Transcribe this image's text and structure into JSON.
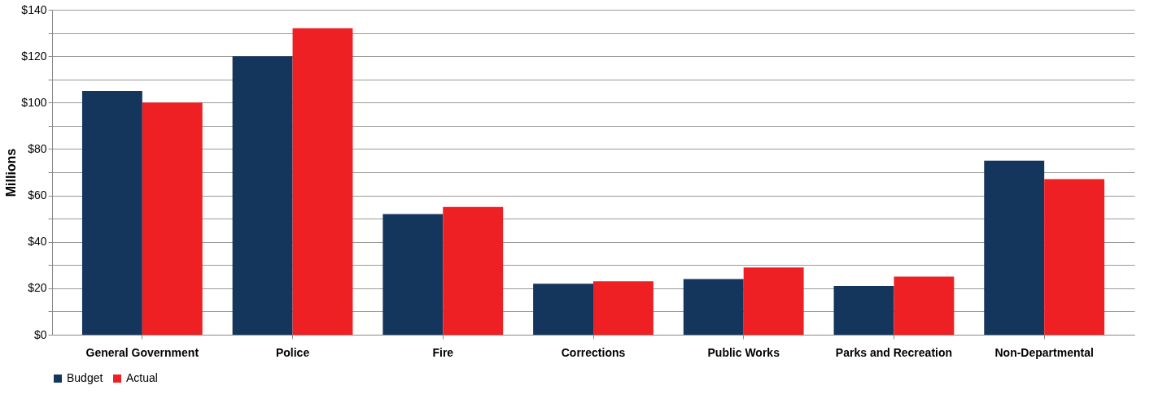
{
  "chart_data": {
    "type": "bar",
    "ylabel": "Millions",
    "categories": [
      "General Government",
      "Police",
      "Fire",
      "Corrections",
      "Public Works",
      "Parks and Recreation",
      "Non-Departmental"
    ],
    "series": [
      {
        "name": "Budget",
        "color": "#14365c",
        "values": [
          105,
          120,
          52,
          22,
          24,
          21,
          75
        ]
      },
      {
        "name": "Actual",
        "color": "#ee2024",
        "values": [
          100,
          132,
          55,
          23,
          29,
          25,
          67
        ]
      }
    ],
    "ylim": [
      0,
      140
    ],
    "yticks": [
      {
        "value": 0,
        "label": "$0"
      },
      {
        "value": 10,
        "label": null
      },
      {
        "value": 20,
        "label": "$20"
      },
      {
        "value": 30,
        "label": null
      },
      {
        "value": 40,
        "label": "$40"
      },
      {
        "value": 50,
        "label": null
      },
      {
        "value": 60,
        "label": "$60"
      },
      {
        "value": 70,
        "label": null
      },
      {
        "value": 80,
        "label": "$80"
      },
      {
        "value": 90,
        "label": null
      },
      {
        "value": 100,
        "label": "$100"
      },
      {
        "value": 110,
        "label": null
      },
      {
        "value": 120,
        "label": "$120"
      },
      {
        "value": 130,
        "label": null
      },
      {
        "value": 140,
        "label": "$140"
      }
    ],
    "grid": "y",
    "legend": "bottom"
  }
}
